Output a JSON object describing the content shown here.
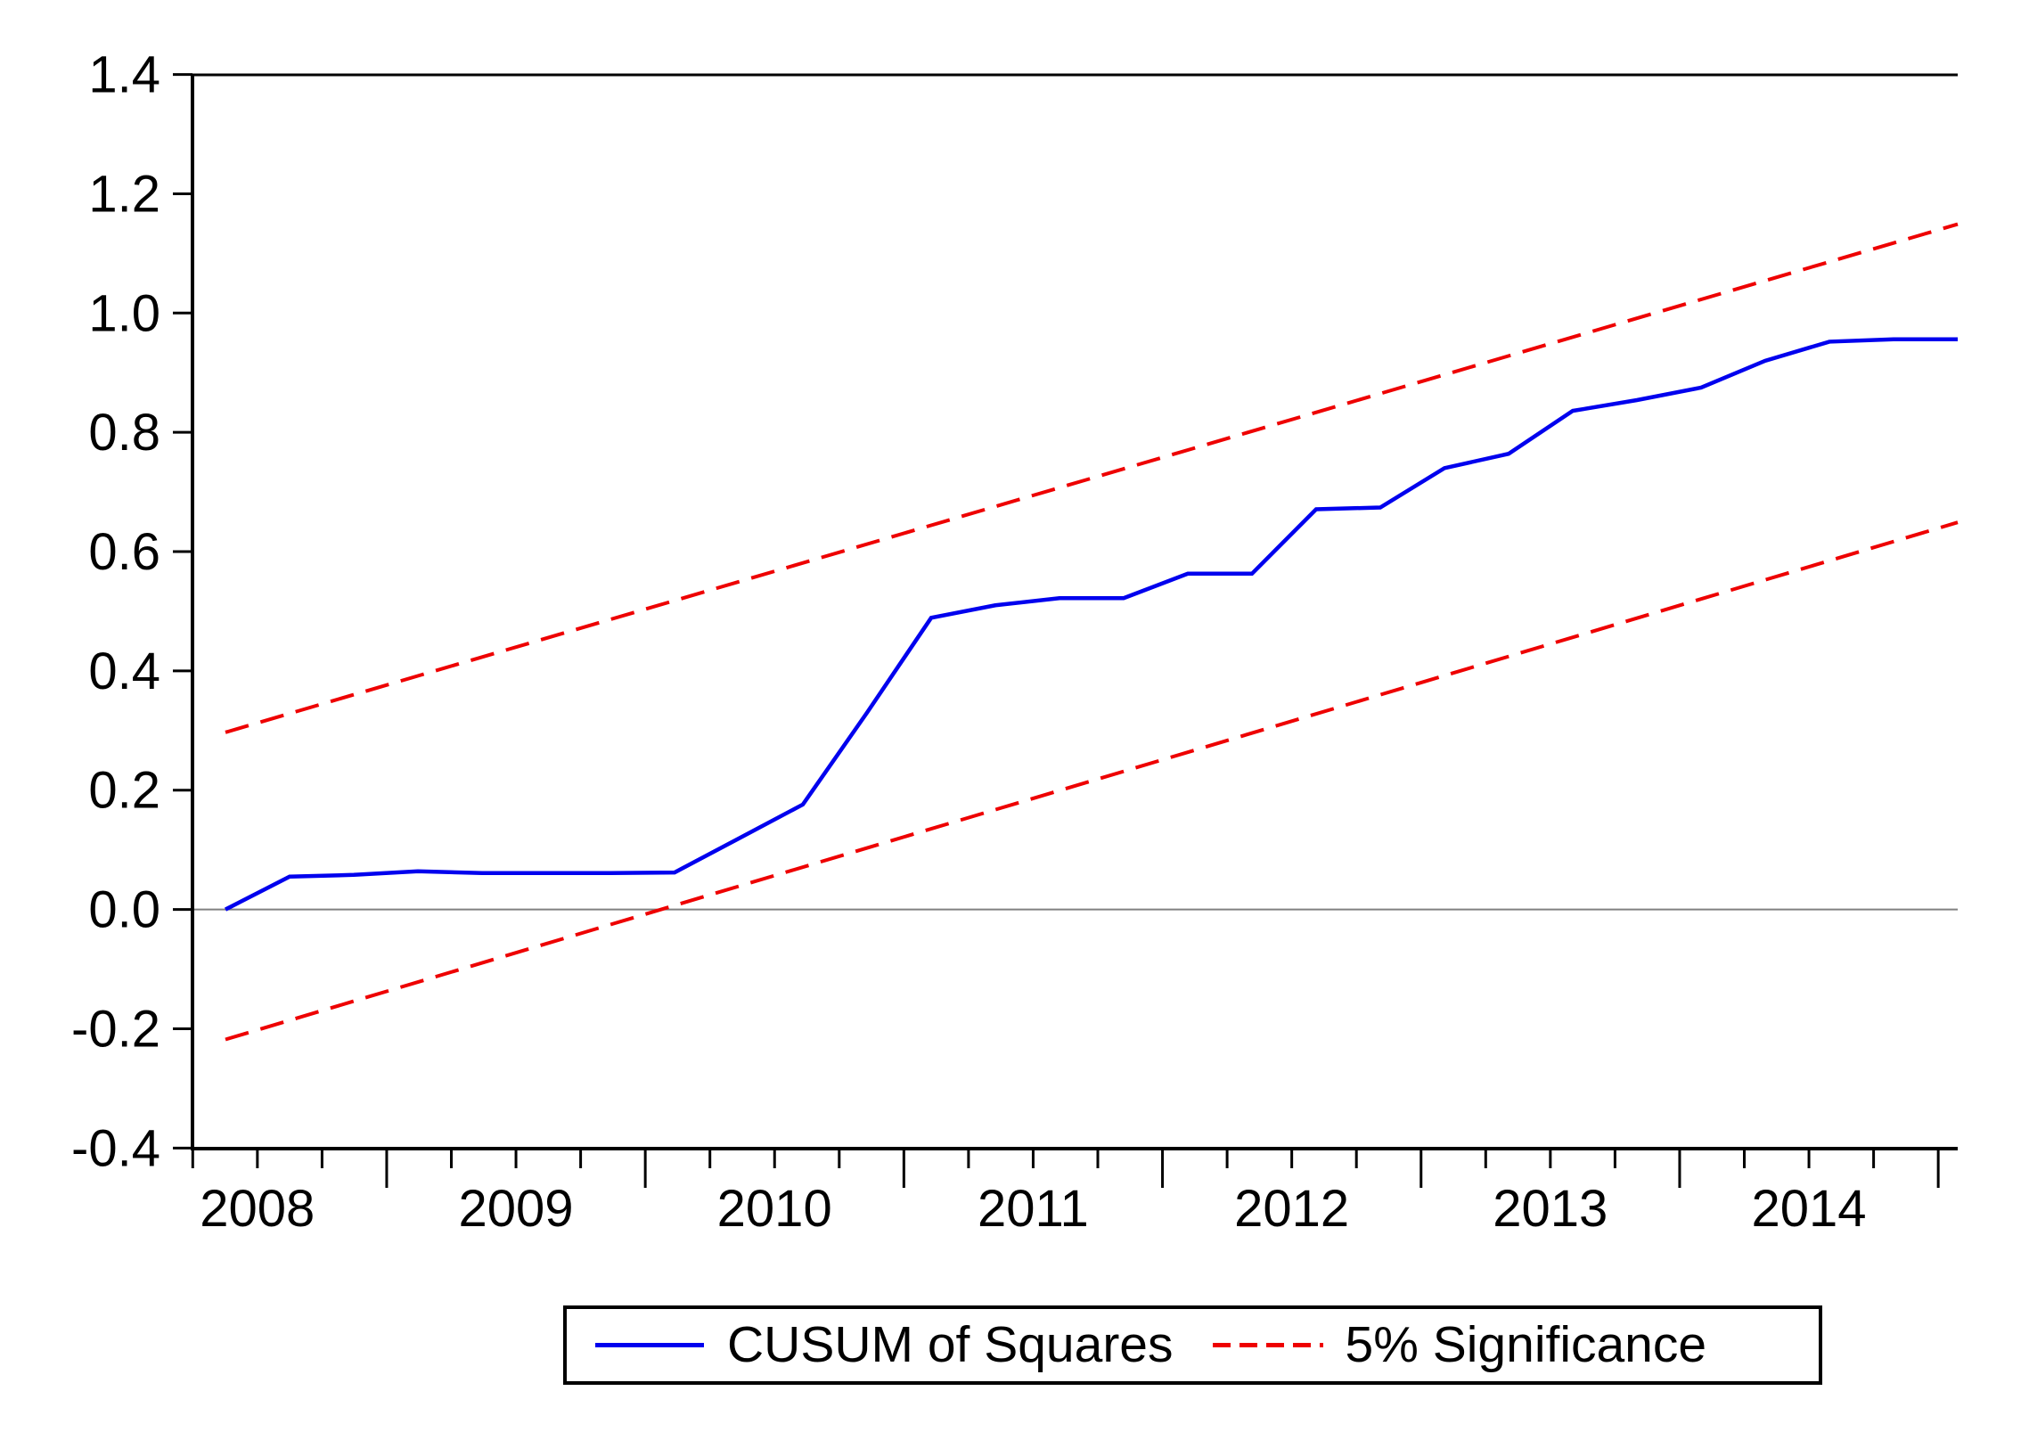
{
  "legend": {
    "items": [
      {
        "label": "CUSUM of Squares",
        "color": "#0000ee",
        "style": "solid"
      },
      {
        "label": "5% Significance",
        "color": "#ee0000",
        "style": "dashed"
      }
    ]
  },
  "chart_data": {
    "type": "line",
    "title": "",
    "xlabel": "",
    "ylabel": "",
    "x_unit": "quarterly",
    "categories": [
      "2008Q1",
      "2008Q2",
      "2008Q3",
      "2008Q4",
      "2009Q1",
      "2009Q2",
      "2009Q3",
      "2009Q4",
      "2010Q1",
      "2010Q2",
      "2010Q3",
      "2010Q4",
      "2011Q1",
      "2011Q2",
      "2011Q3",
      "2011Q4",
      "2012Q1",
      "2012Q2",
      "2012Q3",
      "2012Q4",
      "2013Q1",
      "2013Q2",
      "2013Q3",
      "2013Q4",
      "2014Q1",
      "2014Q2",
      "2014Q3",
      "2014Q4"
    ],
    "series": [
      {
        "name": "CUSUM of Squares",
        "color": "#0000ee",
        "style": "solid",
        "values": [
          0.0,
          0.055,
          0.058,
          0.064,
          0.061,
          0.061,
          0.061,
          0.062,
          0.119,
          0.176,
          0.33,
          0.489,
          0.51,
          0.522,
          0.522,
          0.563,
          0.563,
          0.671,
          0.674,
          0.74,
          0.764,
          0.836,
          0.854,
          0.875,
          0.92,
          0.952,
          0.956,
          0.956
        ]
      },
      {
        "name": "5% Significance (upper bound)",
        "color": "#ee0000",
        "style": "dashed",
        "linear": true,
        "start": 0.297,
        "end": 1.149
      },
      {
        "name": "5% Significance (lower bound)",
        "color": "#ee0000",
        "style": "dashed",
        "linear": true,
        "start": -0.218,
        "end": 0.649
      }
    ],
    "x_tick_labels": [
      "2008",
      "2009",
      "2010",
      "2011",
      "2012",
      "2013",
      "2014"
    ],
    "y_ticks": [
      -0.4,
      -0.2,
      0.0,
      0.2,
      0.4,
      0.6,
      0.8,
      1.0,
      1.2,
      1.4
    ],
    "ylim": [
      -0.4,
      1.4
    ],
    "zero_line": true,
    "zero_line_color": "#808080",
    "axis_color": "#000000",
    "grid": false,
    "legend_position": "bottom"
  }
}
